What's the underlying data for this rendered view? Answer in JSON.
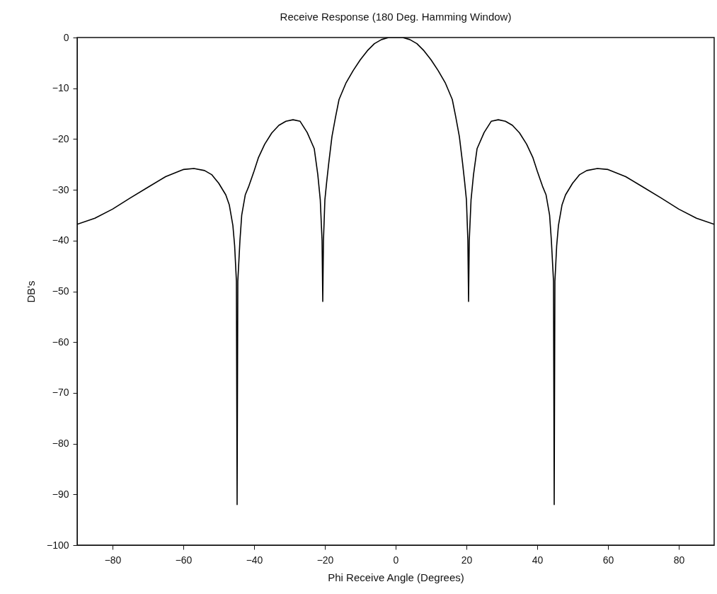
{
  "chart_data": {
    "type": "line",
    "title": "Receive Response (180 Deg. Hamming Window)",
    "xlabel": "Phi Receive Angle (Degrees)",
    "ylabel": "DB's",
    "x": [
      -90,
      -85,
      -80,
      -75,
      -70,
      -65,
      -60,
      -57,
      -54,
      -52,
      -50,
      -48,
      -47,
      -46,
      -45.5,
      -45,
      -44.8,
      -44.6,
      -44,
      -43.5,
      -42.5,
      -41.5,
      -40,
      -38.8,
      -37,
      -35,
      -33,
      -31,
      -29,
      -27,
      -25,
      -23,
      -22,
      -21.3,
      -20.8,
      -20.6,
      -20.4,
      -20,
      -19.5,
      -18.9,
      -18,
      -17,
      -16,
      -14,
      -12,
      -10,
      -8,
      -6,
      -4,
      -2,
      0,
      2,
      4,
      6,
      8,
      10,
      12,
      14,
      16,
      17,
      18,
      18.9,
      19.5,
      20,
      20.4,
      20.6,
      20.8,
      21.3,
      22,
      23,
      25,
      27,
      29,
      31,
      33,
      35,
      37,
      38.8,
      40,
      41.5,
      42.5,
      43.5,
      44,
      44.6,
      44.8,
      45,
      45.5,
      46,
      47,
      48,
      50,
      52,
      54,
      57,
      60,
      65,
      70,
      75,
      80,
      85,
      90
    ],
    "series": [
      {
        "color": "#000000",
        "values": [
          -36.8,
          -35.6,
          -33.8,
          -31.6,
          -29.5,
          -27.4,
          -26.0,
          -25.8,
          -26.2,
          -27.0,
          -28.7,
          -31.0,
          -33.0,
          -37.0,
          -41,
          -48,
          -92,
          -48,
          -40,
          -35,
          -31,
          -29.3,
          -26.3,
          -23.7,
          -21,
          -18.8,
          -17.3,
          -16.5,
          -16.2,
          -16.5,
          -18.7,
          -21.9,
          -27,
          -32,
          -40,
          -52,
          -40,
          -32,
          -28.5,
          -24.7,
          -19.5,
          -15.7,
          -12.2,
          -8.9,
          -6.5,
          -4.4,
          -2.6,
          -1.2,
          -0.4,
          0,
          0,
          0,
          -0.4,
          -1.2,
          -2.6,
          -4.4,
          -6.5,
          -8.9,
          -12.2,
          -15.7,
          -19.5,
          -24.7,
          -28.5,
          -32,
          -40,
          -52,
          -40,
          -32,
          -27,
          -21.9,
          -18.7,
          -16.5,
          -16.2,
          -16.5,
          -17.3,
          -18.8,
          -21,
          -23.7,
          -26.3,
          -29.3,
          -31,
          -35,
          -40,
          -48,
          -92,
          -48,
          -41,
          -37.0,
          -33.0,
          -31.0,
          -28.7,
          -27.0,
          -26.2,
          -25.8,
          -26.0,
          -27.4,
          -29.5,
          -31.6,
          -33.8,
          -35.6,
          -36.8
        ]
      }
    ],
    "xlim": [
      -90,
      90
    ],
    "xticks": [
      -80,
      -60,
      -40,
      -20,
      0,
      20,
      40,
      60,
      80
    ],
    "ylim": [
      -100,
      0
    ],
    "yticks": [
      -100,
      -90,
      -80,
      -70,
      -60,
      -50,
      -40,
      -30,
      -20,
      -10,
      0
    ]
  }
}
